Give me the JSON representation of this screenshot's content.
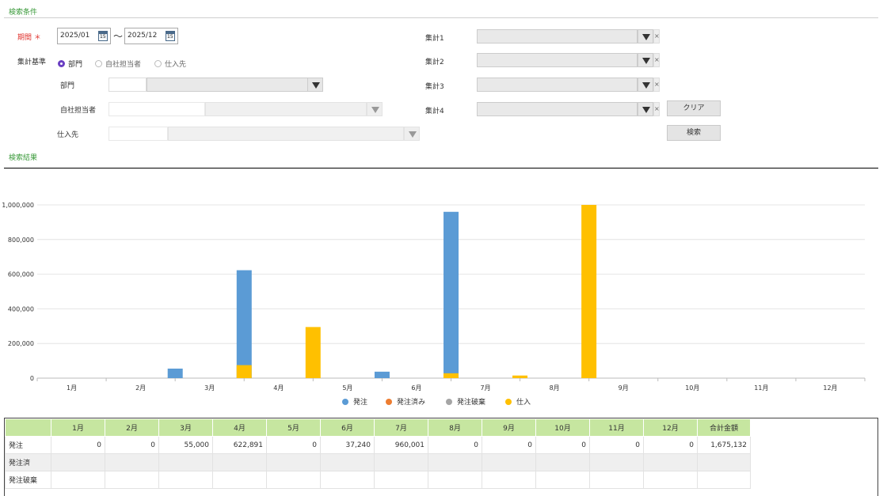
{
  "search": {
    "section_title": "検索条件",
    "period": {
      "label": "期間",
      "required_mark": "＊",
      "from": "2025/01",
      "to": "2025/12",
      "tilde": "～",
      "calendar_glyph": "15"
    },
    "basis": {
      "label": "集計基準",
      "options": [
        "部門",
        "自社担当者",
        "仕入先"
      ],
      "selected": "部門"
    },
    "filters": {
      "dept_label": "部門",
      "staff_label": "自社担当者",
      "supplier_label": "仕入先"
    },
    "aggregations": [
      "集計1",
      "集計2",
      "集計3",
      "集計4"
    ],
    "clear_label": "クリア",
    "search_label": "検索",
    "clear_x": "×"
  },
  "results": {
    "section_title": "検索結果"
  },
  "chart_data": {
    "type": "bar",
    "categories": [
      "1月",
      "2月",
      "3月",
      "4月",
      "5月",
      "6月",
      "7月",
      "8月",
      "9月",
      "10月",
      "11月",
      "12月"
    ],
    "series": [
      {
        "name": "発注",
        "color": "#5b9bd5",
        "values": [
          0,
          0,
          55000,
          622891,
          0,
          37240,
          960001,
          0,
          0,
          0,
          0,
          0
        ]
      },
      {
        "name": "発注済み",
        "color": "#ed7d31",
        "values": [
          0,
          0,
          0,
          0,
          0,
          0,
          0,
          0,
          0,
          0,
          0,
          0
        ]
      },
      {
        "name": "発注破棄",
        "color": "#a5a5a5",
        "values": [
          0,
          0,
          0,
          0,
          0,
          0,
          0,
          0,
          0,
          0,
          0,
          0
        ]
      },
      {
        "name": "仕入",
        "color": "#ffc000",
        "values": [
          0,
          0,
          75000,
          295000,
          0,
          28000,
          15000,
          1000000,
          0,
          0,
          0,
          0
        ]
      }
    ],
    "yticks": [
      "0",
      "200,000",
      "400,000",
      "600,000",
      "800,000",
      "1,000,000"
    ],
    "ylim": [
      0,
      1000000
    ],
    "grid": true,
    "legend": "bottom"
  },
  "table": {
    "headers": [
      "",
      "1月",
      "2月",
      "3月",
      "4月",
      "5月",
      "6月",
      "7月",
      "8月",
      "9月",
      "10月",
      "11月",
      "12月",
      "合計金額"
    ],
    "rows": [
      {
        "label": "発注",
        "cells": [
          "0",
          "0",
          "55,000",
          "622,891",
          "0",
          "37,240",
          "960,001",
          "0",
          "0",
          "0",
          "0",
          "0",
          "1,675,132"
        ]
      },
      {
        "label": "発注済",
        "cells": [
          "",
          "",
          "",
          "",
          "",
          "",
          "",
          "",
          "",
          "",
          "",
          "",
          ""
        ]
      },
      {
        "label": "発注破棄",
        "cells": [
          "",
          "",
          "",
          "",
          "",
          "",
          "",
          "",
          "",
          "",
          "",
          "",
          ""
        ]
      }
    ]
  }
}
